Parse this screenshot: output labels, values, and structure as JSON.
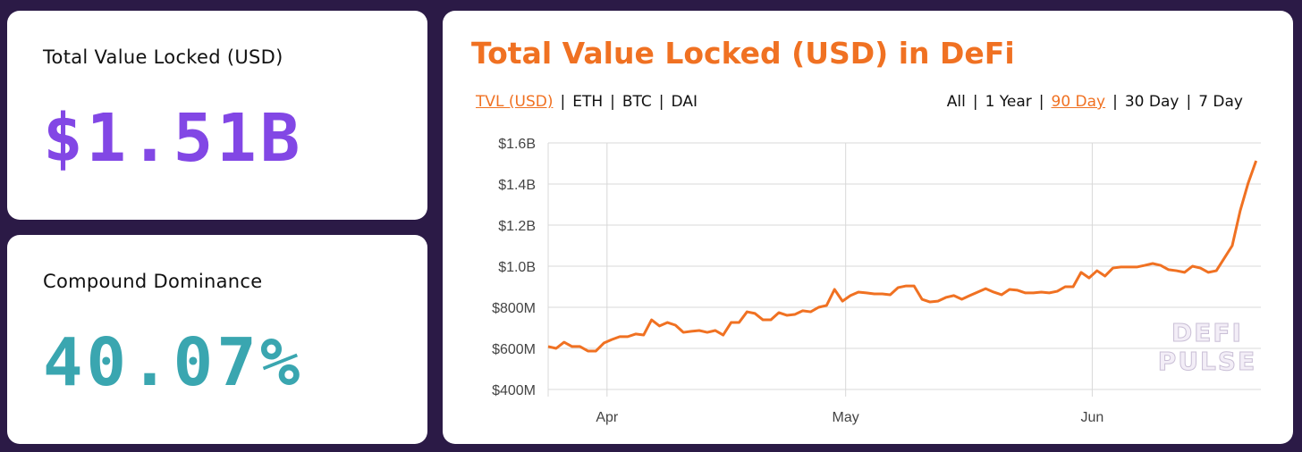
{
  "cards": [
    {
      "label": "Total Value Locked (USD)",
      "value": "$1.51B",
      "color": "#8247e5"
    },
    {
      "label": "Compound Dominance",
      "value": "40.07%",
      "color": "#3aa6b0"
    }
  ],
  "chart": {
    "title": "Total Value Locked (USD) in DeFi",
    "metric_tabs": [
      {
        "label": "TVL (USD)",
        "active": true
      },
      {
        "label": "ETH"
      },
      {
        "label": "BTC"
      },
      {
        "label": "DAI"
      }
    ],
    "range_tabs": [
      {
        "label": "All"
      },
      {
        "label": "1 Year"
      },
      {
        "label": "90 Day",
        "active": true
      },
      {
        "label": "30 Day"
      },
      {
        "label": "7 Day"
      }
    ],
    "watermark": [
      "DEFI",
      "PULSE"
    ]
  },
  "chart_data": {
    "type": "line",
    "title": "Total Value Locked (USD) in DeFi",
    "x_unit": "days since Mar 24",
    "xlim": [
      0,
      89.6
    ],
    "x_ticks": [
      {
        "label": "Apr",
        "x": 7.4
      },
      {
        "label": "May",
        "x": 37.4
      },
      {
        "label": "Jun",
        "x": 68.4
      }
    ],
    "ylim": [
      400,
      1600
    ],
    "y_ticks": [
      {
        "label": "$400M",
        "v": 400
      },
      {
        "label": "$600M",
        "v": 600
      },
      {
        "label": "$800M",
        "v": 800
      },
      {
        "label": "$1.0B",
        "v": 1000
      },
      {
        "label": "$1.2B",
        "v": 1200
      },
      {
        "label": "$1.4B",
        "v": 1400
      },
      {
        "label": "$1.6B",
        "v": 1600
      }
    ],
    "grid": true,
    "color": "#f07122",
    "series": [
      {
        "name": "TVL (USD, $M)",
        "values": [
          609,
          600,
          630,
          609,
          609,
          587,
          587,
          626,
          643,
          657,
          657,
          670,
          665,
          739,
          709,
          726,
          713,
          678,
          683,
          687,
          678,
          687,
          665,
          726,
          726,
          778,
          770,
          739,
          739,
          774,
          761,
          765,
          783,
          778,
          800,
          809,
          887,
          830,
          857,
          874,
          870,
          865,
          865,
          861,
          896,
          904,
          904,
          839,
          826,
          830,
          848,
          857,
          839,
          857,
          874,
          891,
          874,
          861,
          887,
          883,
          870,
          870,
          874,
          870,
          878,
          900,
          900,
          970,
          943,
          978,
          952,
          991,
          996,
          996,
          996,
          1004,
          1013,
          1004,
          983,
          978,
          970,
          1000,
          991,
          970,
          978,
          1039,
          1100,
          1270,
          1404,
          1513
        ]
      }
    ]
  }
}
